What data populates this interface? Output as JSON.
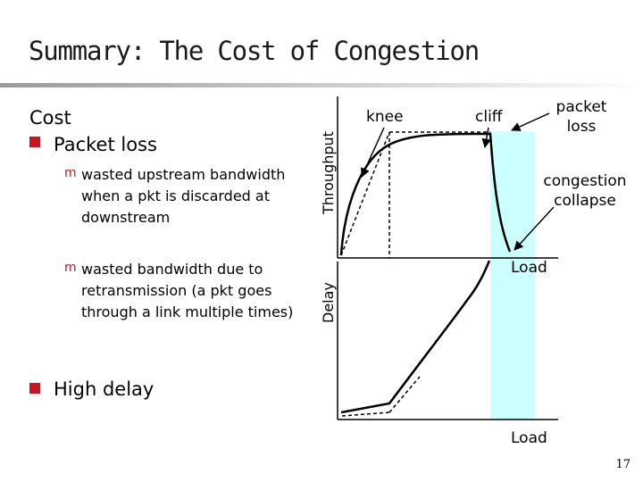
{
  "slide": {
    "title": "Summary: The Cost of Congestion",
    "page_number": "17"
  },
  "bullets": {
    "cost_heading": "Cost",
    "packet_loss": "Packet loss",
    "wasted_upstream": "wasted upstream bandwidth when a pkt is discarded at downstream",
    "wasted_retrans": "wasted bandwidth due to retransmission (a pkt goes through a link multiple times)",
    "high_delay": "High delay"
  },
  "diagram": {
    "throughput_axis_label": "Throughput",
    "delay_axis_label": "Delay",
    "load_label_top": "Load",
    "load_label_bottom": "Load",
    "knee_label": "knee",
    "cliff_label": "cliff",
    "packet_loss_label": "packet loss",
    "congestion_collapse_label": "congestion collapse",
    "colors": {
      "collapse_region": "#ccffff",
      "bullet": "#c4161c"
    }
  }
}
